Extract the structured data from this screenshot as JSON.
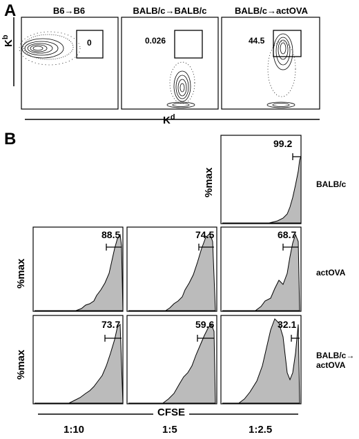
{
  "panel_a": {
    "letter": "A",
    "columns": [
      "B6→B6",
      "BALB/c→BALB/c",
      "BALB/c→actOVA"
    ],
    "gate_values": [
      "0",
      "0.026",
      "44.5"
    ],
    "y_axis": "K",
    "y_axis_sup": "b",
    "x_axis": "K",
    "x_axis_sup": "d"
  },
  "panel_b": {
    "letter": "B",
    "y_axis_label": "%max",
    "x_axis_label": "CFSE",
    "ratios": [
      "1:10",
      "1:5",
      "1:2.5"
    ],
    "row_labels": [
      "BALB/c",
      "actOVA",
      "BALB/c→",
      "actOVA"
    ],
    "values": {
      "top_right": "99.2",
      "mid": [
        "88.5",
        "74.5",
        "68.7"
      ],
      "bottom": [
        "73.7",
        "59.6",
        "32.1"
      ]
    }
  }
}
